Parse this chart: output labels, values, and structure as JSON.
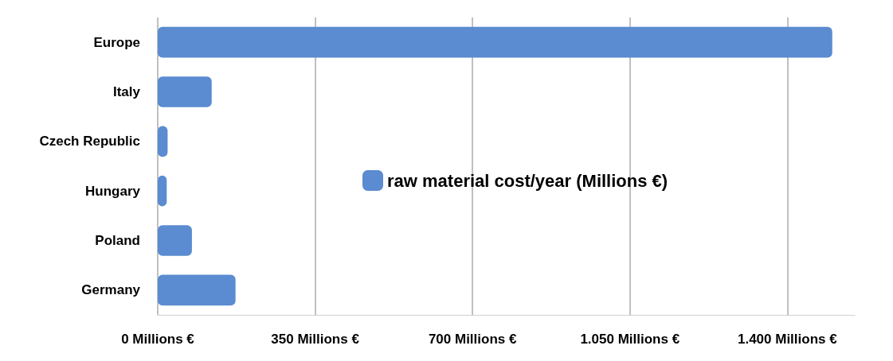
{
  "chart_data": {
    "type": "bar",
    "orientation": "horizontal",
    "categories": [
      "Europe",
      "Italy",
      "Czech Republic",
      "Hungary",
      "Poland",
      "Germany"
    ],
    "series": [
      {
        "name": "raw material cost/year (Millions €)",
        "color": "#5b8bd0",
        "values": [
          1500,
          120,
          22,
          20,
          76,
          173
        ]
      }
    ],
    "xlim": [
      0,
      1550
    ],
    "xticks": [
      {
        "value": 0,
        "label": "0 Millions €"
      },
      {
        "value": 350,
        "label": "350 Millions €"
      },
      {
        "value": 700,
        "label": "700 Millions €"
      },
      {
        "value": 1050,
        "label": "1.050 Millions €"
      },
      {
        "value": 1400,
        "label": "1.400 Millions €"
      }
    ],
    "grid": "x",
    "legend": "center"
  }
}
